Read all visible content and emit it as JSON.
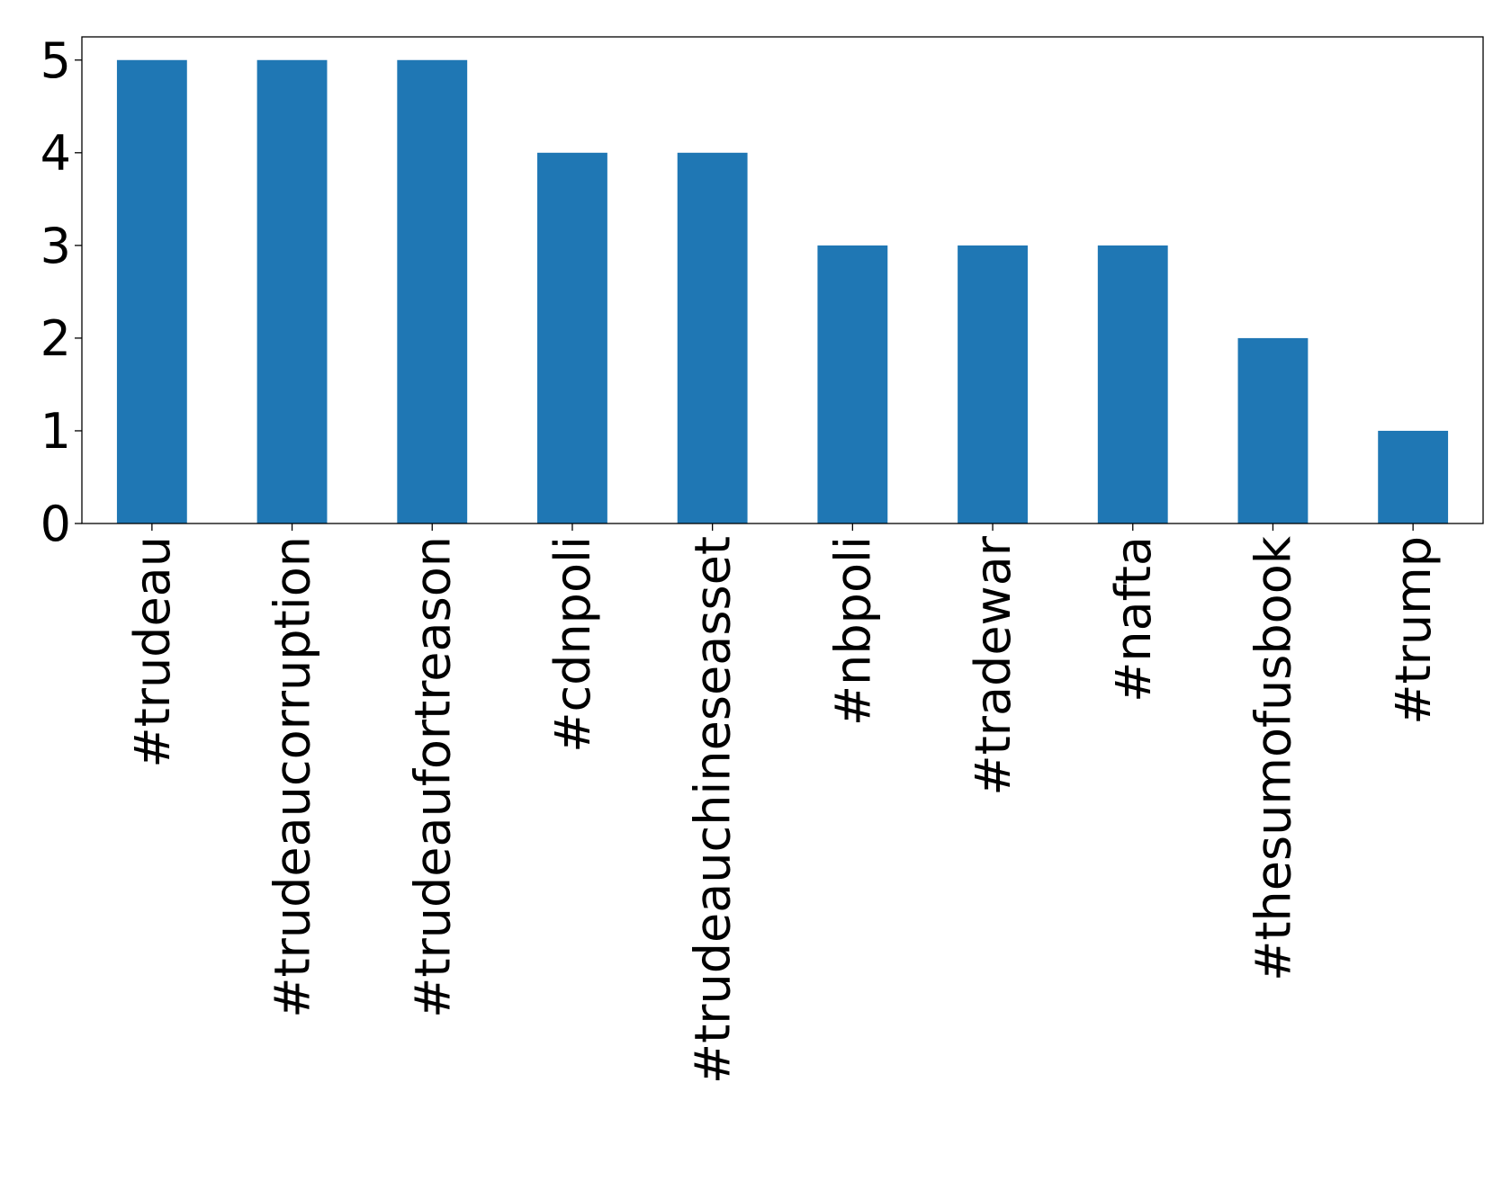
{
  "chart_data": {
    "type": "bar",
    "categories": [
      "#trudeau",
      "#trudeaucorruption",
      "#trudeaufortreason",
      "#cdnpoli",
      "#trudeauchineseasset",
      "#nbpoli",
      "#tradewar",
      "#nafta",
      "#thesumofusbook",
      "#trump"
    ],
    "values": [
      5,
      5,
      5,
      4,
      4,
      3,
      3,
      3,
      2,
      1
    ],
    "color": "#1f77b4",
    "ylim": [
      0,
      5.25
    ],
    "yticks": [
      0,
      1,
      2,
      3,
      4,
      5
    ],
    "grid": false
  }
}
